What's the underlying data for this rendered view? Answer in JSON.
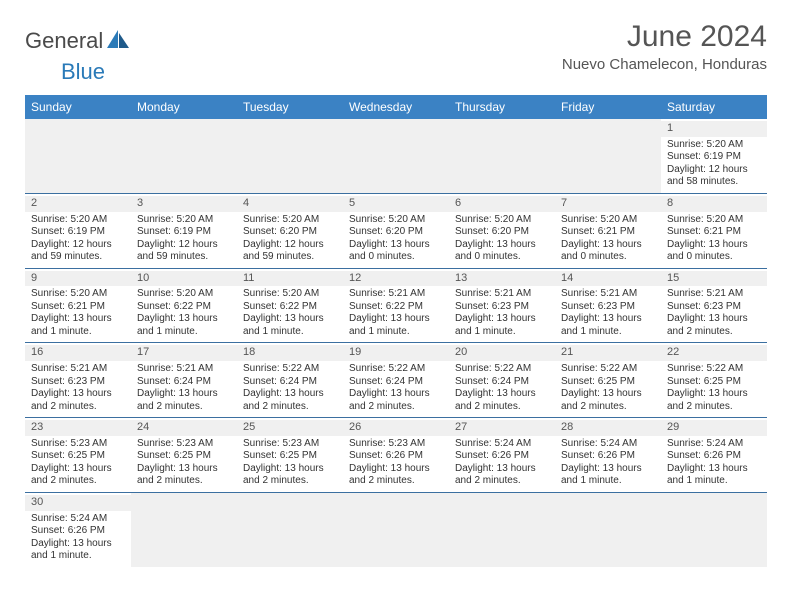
{
  "logo": {
    "text_dark": "General",
    "text_blue": "Blue"
  },
  "title": "June 2024",
  "location": "Nuevo Chamelecon, Honduras",
  "colors": {
    "header_bg": "#3b82c4",
    "header_text": "#ffffff",
    "row_border": "#3b6fa0",
    "daynum_bg": "#f0f0f0",
    "text": "#333333",
    "logo_blue": "#2a7ab8",
    "logo_dark": "#4a4a4a"
  },
  "day_headers": [
    "Sunday",
    "Monday",
    "Tuesday",
    "Wednesday",
    "Thursday",
    "Friday",
    "Saturday"
  ],
  "weeks": [
    [
      null,
      null,
      null,
      null,
      null,
      null,
      {
        "n": "1",
        "sr": "Sunrise: 5:20 AM",
        "ss": "Sunset: 6:19 PM",
        "d1": "Daylight: 12 hours",
        "d2": "and 58 minutes."
      }
    ],
    [
      {
        "n": "2",
        "sr": "Sunrise: 5:20 AM",
        "ss": "Sunset: 6:19 PM",
        "d1": "Daylight: 12 hours",
        "d2": "and 59 minutes."
      },
      {
        "n": "3",
        "sr": "Sunrise: 5:20 AM",
        "ss": "Sunset: 6:19 PM",
        "d1": "Daylight: 12 hours",
        "d2": "and 59 minutes."
      },
      {
        "n": "4",
        "sr": "Sunrise: 5:20 AM",
        "ss": "Sunset: 6:20 PM",
        "d1": "Daylight: 12 hours",
        "d2": "and 59 minutes."
      },
      {
        "n": "5",
        "sr": "Sunrise: 5:20 AM",
        "ss": "Sunset: 6:20 PM",
        "d1": "Daylight: 13 hours",
        "d2": "and 0 minutes."
      },
      {
        "n": "6",
        "sr": "Sunrise: 5:20 AM",
        "ss": "Sunset: 6:20 PM",
        "d1": "Daylight: 13 hours",
        "d2": "and 0 minutes."
      },
      {
        "n": "7",
        "sr": "Sunrise: 5:20 AM",
        "ss": "Sunset: 6:21 PM",
        "d1": "Daylight: 13 hours",
        "d2": "and 0 minutes."
      },
      {
        "n": "8",
        "sr": "Sunrise: 5:20 AM",
        "ss": "Sunset: 6:21 PM",
        "d1": "Daylight: 13 hours",
        "d2": "and 0 minutes."
      }
    ],
    [
      {
        "n": "9",
        "sr": "Sunrise: 5:20 AM",
        "ss": "Sunset: 6:21 PM",
        "d1": "Daylight: 13 hours",
        "d2": "and 1 minute."
      },
      {
        "n": "10",
        "sr": "Sunrise: 5:20 AM",
        "ss": "Sunset: 6:22 PM",
        "d1": "Daylight: 13 hours",
        "d2": "and 1 minute."
      },
      {
        "n": "11",
        "sr": "Sunrise: 5:20 AM",
        "ss": "Sunset: 6:22 PM",
        "d1": "Daylight: 13 hours",
        "d2": "and 1 minute."
      },
      {
        "n": "12",
        "sr": "Sunrise: 5:21 AM",
        "ss": "Sunset: 6:22 PM",
        "d1": "Daylight: 13 hours",
        "d2": "and 1 minute."
      },
      {
        "n": "13",
        "sr": "Sunrise: 5:21 AM",
        "ss": "Sunset: 6:23 PM",
        "d1": "Daylight: 13 hours",
        "d2": "and 1 minute."
      },
      {
        "n": "14",
        "sr": "Sunrise: 5:21 AM",
        "ss": "Sunset: 6:23 PM",
        "d1": "Daylight: 13 hours",
        "d2": "and 1 minute."
      },
      {
        "n": "15",
        "sr": "Sunrise: 5:21 AM",
        "ss": "Sunset: 6:23 PM",
        "d1": "Daylight: 13 hours",
        "d2": "and 2 minutes."
      }
    ],
    [
      {
        "n": "16",
        "sr": "Sunrise: 5:21 AM",
        "ss": "Sunset: 6:23 PM",
        "d1": "Daylight: 13 hours",
        "d2": "and 2 minutes."
      },
      {
        "n": "17",
        "sr": "Sunrise: 5:21 AM",
        "ss": "Sunset: 6:24 PM",
        "d1": "Daylight: 13 hours",
        "d2": "and 2 minutes."
      },
      {
        "n": "18",
        "sr": "Sunrise: 5:22 AM",
        "ss": "Sunset: 6:24 PM",
        "d1": "Daylight: 13 hours",
        "d2": "and 2 minutes."
      },
      {
        "n": "19",
        "sr": "Sunrise: 5:22 AM",
        "ss": "Sunset: 6:24 PM",
        "d1": "Daylight: 13 hours",
        "d2": "and 2 minutes."
      },
      {
        "n": "20",
        "sr": "Sunrise: 5:22 AM",
        "ss": "Sunset: 6:24 PM",
        "d1": "Daylight: 13 hours",
        "d2": "and 2 minutes."
      },
      {
        "n": "21",
        "sr": "Sunrise: 5:22 AM",
        "ss": "Sunset: 6:25 PM",
        "d1": "Daylight: 13 hours",
        "d2": "and 2 minutes."
      },
      {
        "n": "22",
        "sr": "Sunrise: 5:22 AM",
        "ss": "Sunset: 6:25 PM",
        "d1": "Daylight: 13 hours",
        "d2": "and 2 minutes."
      }
    ],
    [
      {
        "n": "23",
        "sr": "Sunrise: 5:23 AM",
        "ss": "Sunset: 6:25 PM",
        "d1": "Daylight: 13 hours",
        "d2": "and 2 minutes."
      },
      {
        "n": "24",
        "sr": "Sunrise: 5:23 AM",
        "ss": "Sunset: 6:25 PM",
        "d1": "Daylight: 13 hours",
        "d2": "and 2 minutes."
      },
      {
        "n": "25",
        "sr": "Sunrise: 5:23 AM",
        "ss": "Sunset: 6:25 PM",
        "d1": "Daylight: 13 hours",
        "d2": "and 2 minutes."
      },
      {
        "n": "26",
        "sr": "Sunrise: 5:23 AM",
        "ss": "Sunset: 6:26 PM",
        "d1": "Daylight: 13 hours",
        "d2": "and 2 minutes."
      },
      {
        "n": "27",
        "sr": "Sunrise: 5:24 AM",
        "ss": "Sunset: 6:26 PM",
        "d1": "Daylight: 13 hours",
        "d2": "and 2 minutes."
      },
      {
        "n": "28",
        "sr": "Sunrise: 5:24 AM",
        "ss": "Sunset: 6:26 PM",
        "d1": "Daylight: 13 hours",
        "d2": "and 1 minute."
      },
      {
        "n": "29",
        "sr": "Sunrise: 5:24 AM",
        "ss": "Sunset: 6:26 PM",
        "d1": "Daylight: 13 hours",
        "d2": "and 1 minute."
      }
    ],
    [
      {
        "n": "30",
        "sr": "Sunrise: 5:24 AM",
        "ss": "Sunset: 6:26 PM",
        "d1": "Daylight: 13 hours",
        "d2": "and 1 minute."
      },
      null,
      null,
      null,
      null,
      null,
      null
    ]
  ]
}
